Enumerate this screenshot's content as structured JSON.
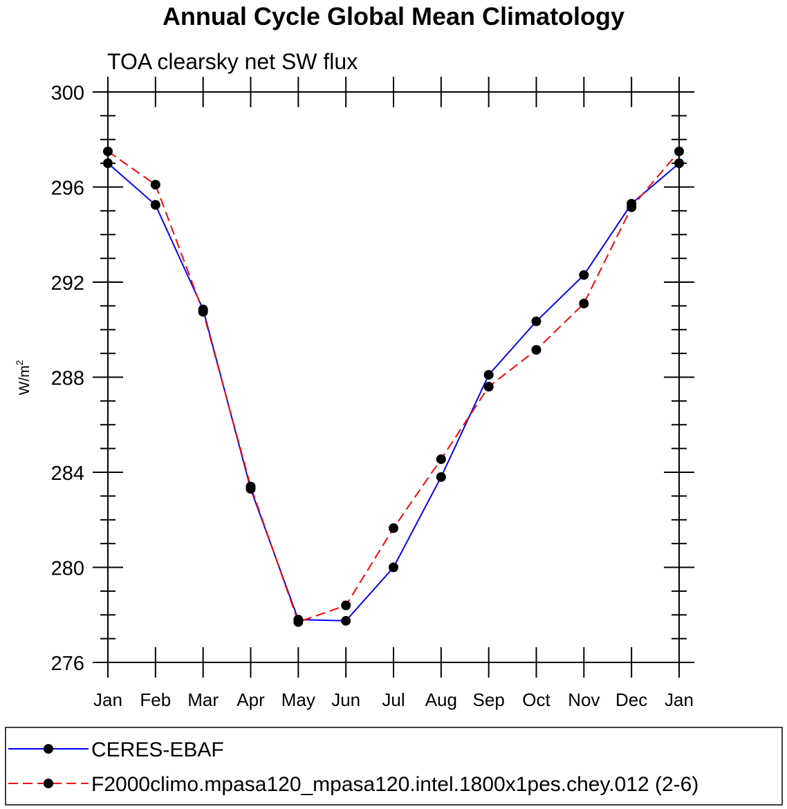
{
  "chart_data": {
    "type": "line",
    "title": "Annual Cycle Global Mean Climatology",
    "subtitle": "TOA clearsky net SW flux",
    "ylabel_base": "W/m",
    "ylabel_sup": "2",
    "xlabel": "",
    "categories": [
      "Jan",
      "Feb",
      "Mar",
      "Apr",
      "May",
      "Jun",
      "Jul",
      "Aug",
      "Sep",
      "Oct",
      "Nov",
      "Dec",
      "Jan"
    ],
    "ylim": [
      276,
      300
    ],
    "yticks": [
      276,
      280,
      284,
      288,
      292,
      296,
      300
    ],
    "yticks_labels": [
      "276",
      "280",
      "284",
      "288",
      "292",
      "296",
      "300"
    ],
    "grid": false,
    "legend_position": "bottom",
    "series": [
      {
        "name": "CERES-EBAF",
        "color": "#0000ff",
        "line_style": "solid",
        "marker": "filled-circle",
        "values": [
          297.0,
          295.25,
          290.85,
          283.3,
          277.8,
          277.75,
          280.0,
          283.8,
          288.1,
          290.35,
          292.3,
          295.3,
          297.0
        ]
      },
      {
        "name": "F2000climo.mpasa120_mpasa120.intel.1800x1pes.chey.012 (2-6)",
        "color": "#ff0000",
        "line_style": "dashed",
        "marker": "filled-circle",
        "values": [
          297.5,
          296.1,
          290.75,
          283.4,
          277.7,
          278.4,
          281.65,
          284.55,
          287.6,
          289.15,
          291.1,
          295.15,
          297.5
        ]
      }
    ]
  }
}
